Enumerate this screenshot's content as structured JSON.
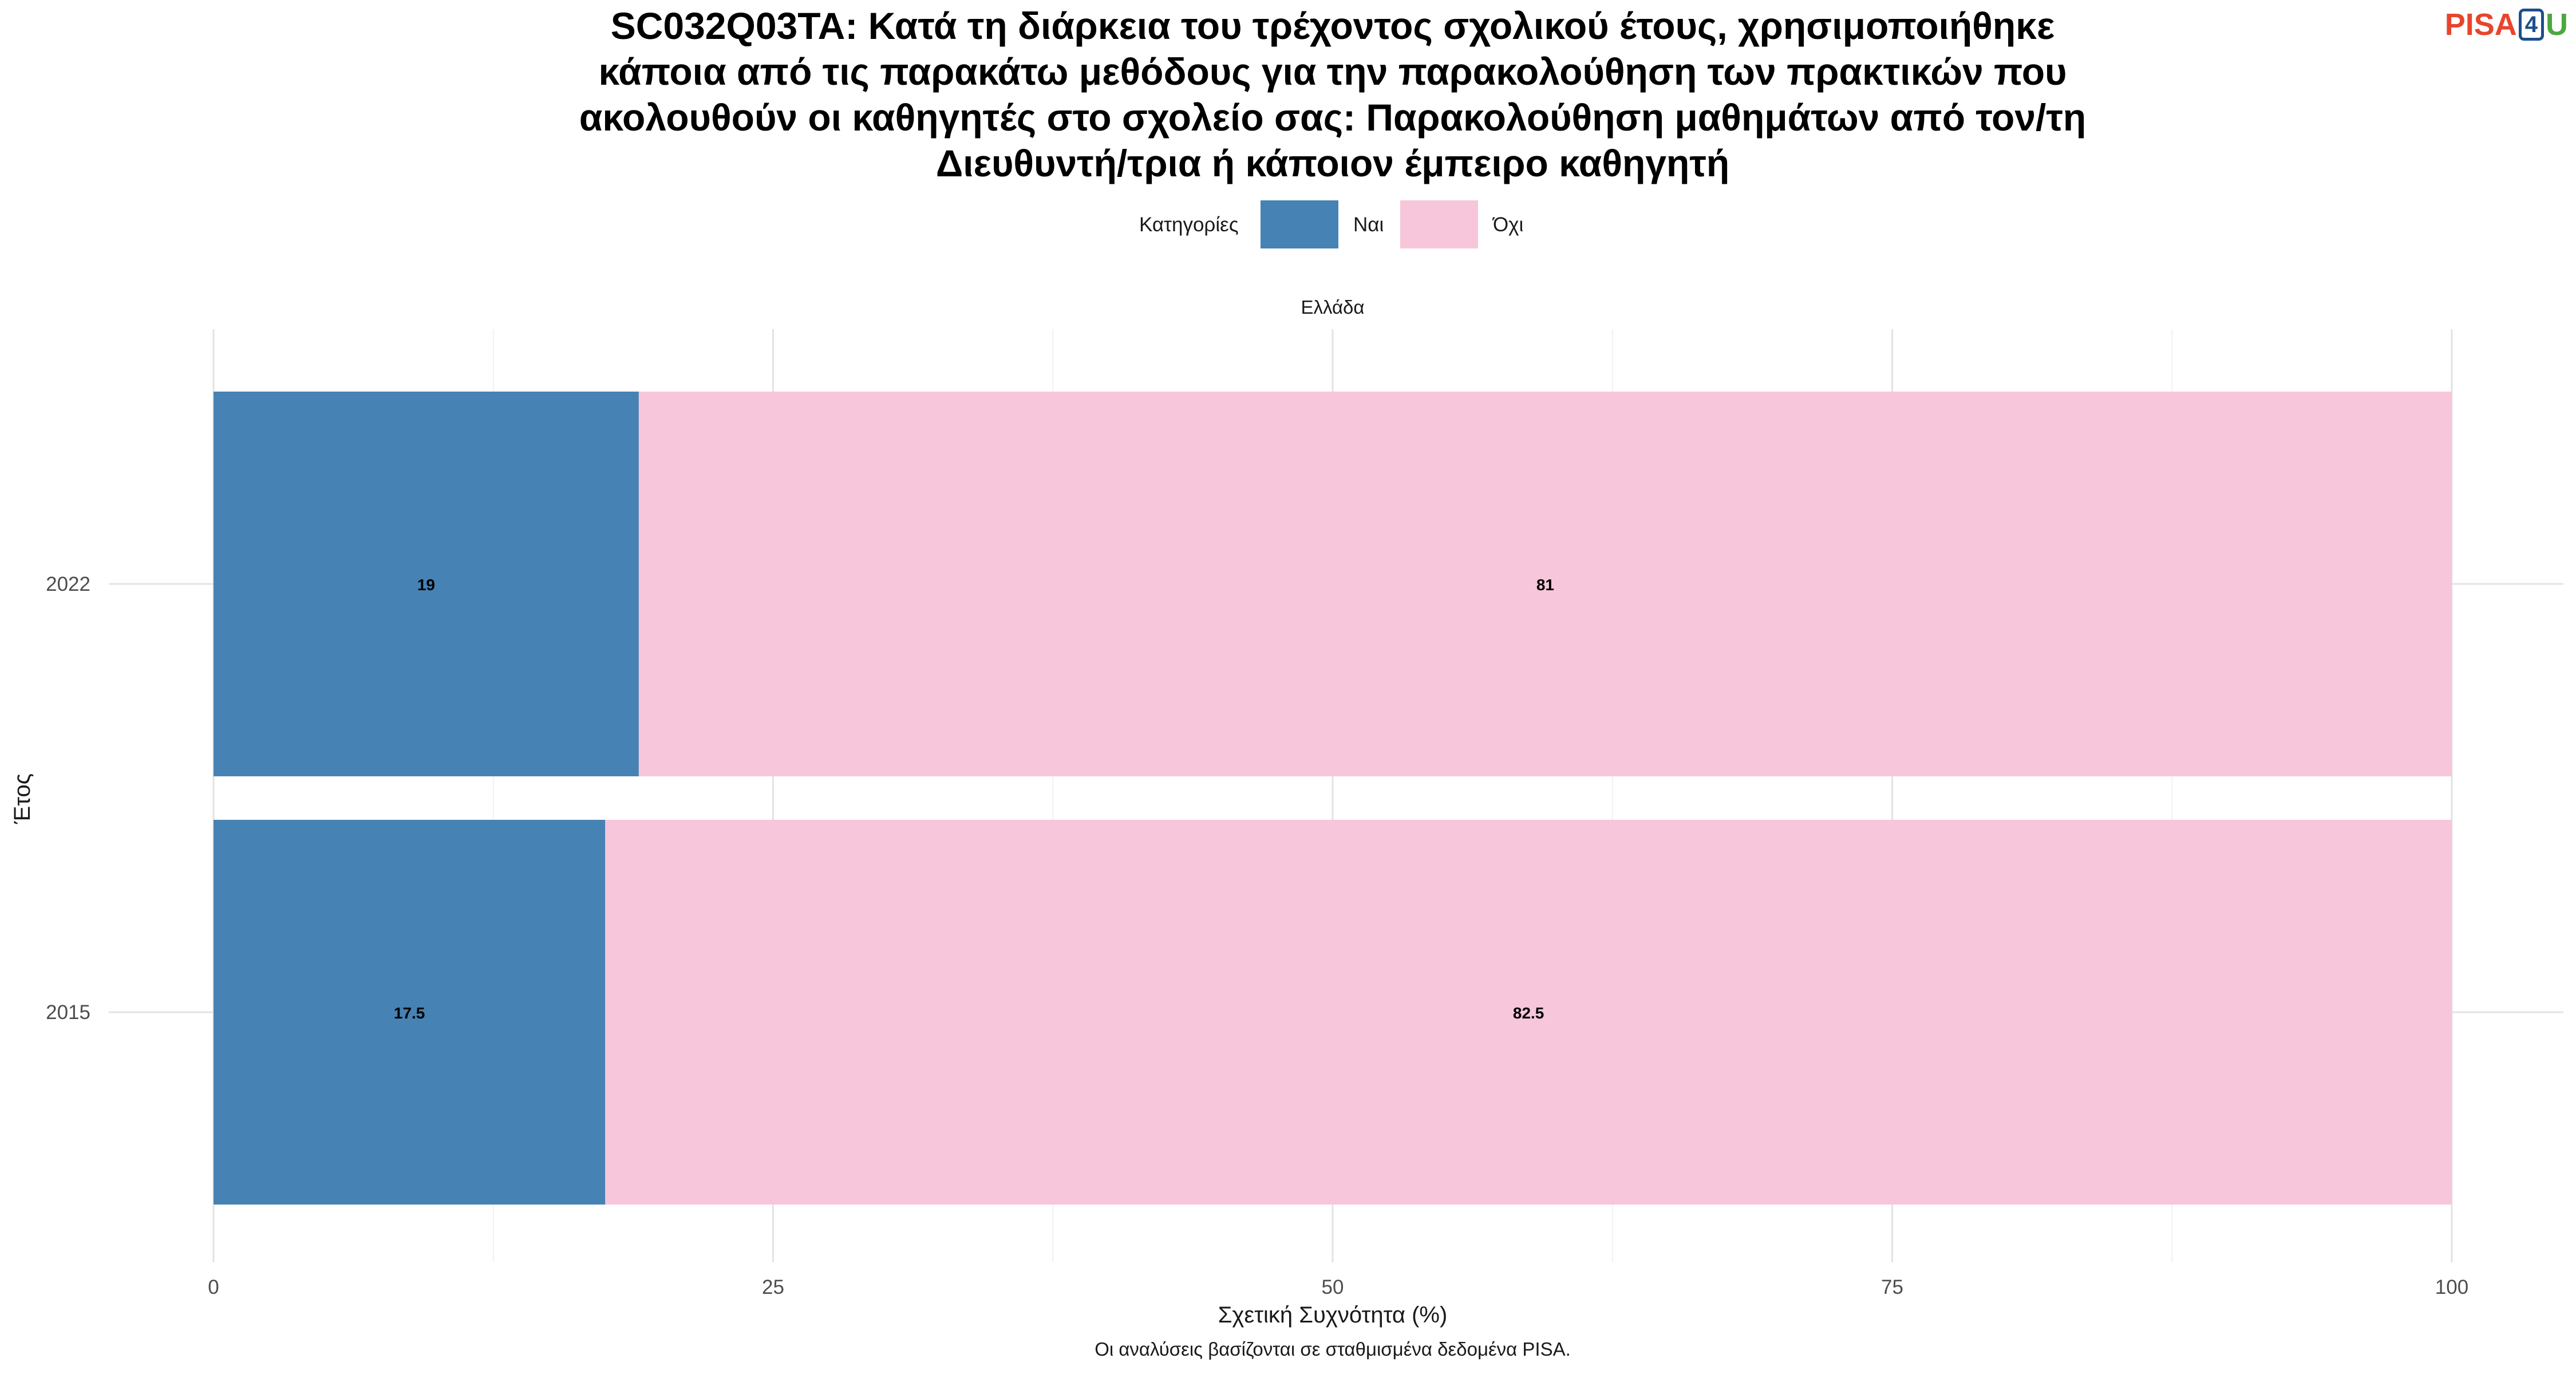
{
  "logo": {
    "part1": "PISA",
    "part2": "4",
    "part3": "U"
  },
  "chart_data": {
    "type": "bar",
    "orientation": "horizontal",
    "stacked": true,
    "title": "SC032Q03TA: Κατά τη διάρκεια του τρέχοντος σχολικού έτους, χρησιμοποιήθηκε κάποια από τις παρακάτω μεθόδους για την παρακολούθηση των πρακτικών που ακολουθούν οι καθηγητές στο σχολείο σας: Παρακολούθηση μαθημάτων από τον/τη Διευθυντή/τρια ή κάποιον έμπειρο καθηγητή",
    "title_lines": [
      "SC032Q03TA: Κατά τη διάρκεια του τρέχοντος σχολικού έτους, χρησιμοποιήθηκε",
      "κάποια από τις παρακάτω μεθόδους για την παρακολούθηση των πρακτικών που",
      "ακολουθούν οι καθηγητές στο σχολείο σας: Παρακολούθηση μαθημάτων από τον/τη",
      "Διευθυντή/τρια ή κάποιον έμπειρο καθηγητή"
    ],
    "facet_label": "Ελλάδα",
    "legend_title": "Κατηγορίες",
    "legend_position": "top",
    "categories": [
      "2022",
      "2015"
    ],
    "series": [
      {
        "name": "Ναι",
        "color": "#4682b4",
        "values": [
          19,
          17.5
        ],
        "labels": [
          "19",
          "17.5"
        ]
      },
      {
        "name": "Όχι",
        "color": "#f7c6db",
        "values": [
          81,
          82.5
        ],
        "labels": [
          "81",
          "82.5"
        ]
      }
    ],
    "xlabel": "Σχετική Συχνότητα (%)",
    "ylabel": "Έτος",
    "xlim": [
      0,
      100
    ],
    "xticks": [
      0,
      25,
      50,
      75,
      100
    ],
    "grid": true,
    "caption": "Οι αναλύσεις βασίζονται σε σταθμισμένα δεδομένα PISA."
  }
}
